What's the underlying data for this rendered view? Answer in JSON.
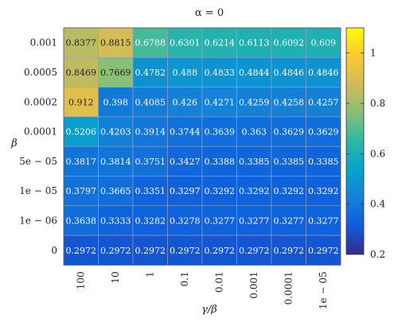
{
  "chart_data": {
    "type": "heatmap",
    "title": "α = 0",
    "xlabel": "γ/β",
    "ylabel": "β",
    "x_categories": [
      "100",
      "10",
      "1",
      "0.1",
      "0.01",
      "0.001",
      "0.0001",
      "1e − 05"
    ],
    "y_categories": [
      "0.001",
      "0.0005",
      "0.0002",
      "0.0001",
      "5e − 05",
      "1e − 05",
      "1e − 06",
      "0"
    ],
    "values": [
      [
        "0.8377",
        "0.8815",
        "0.6788",
        "0.6301",
        "0.6214",
        "0.6113",
        "0.6092",
        "0.609"
      ],
      [
        "0.8469",
        "0.7669",
        "0.4782",
        "0.488",
        "0.4833",
        "0.4844",
        "0.4846",
        "0.4846"
      ],
      [
        "0.912",
        "0.398",
        "0.4085",
        "0.426",
        "0.4271",
        "0.4259",
        "0.4258",
        "0.4257"
      ],
      [
        "0.5206",
        "0.4203",
        "0.3914",
        "0.3744",
        "0.3639",
        "0.363",
        "0.3629",
        "0.3629"
      ],
      [
        "0.3817",
        "0.3814",
        "0.3751",
        "0.3427",
        "0.3388",
        "0.3385",
        "0.3385",
        "0.3385"
      ],
      [
        "0.3797",
        "0.3665",
        "0.3351",
        "0.3297",
        "0.3292",
        "0.3292",
        "0.3292",
        "0.3292"
      ],
      [
        "0.3638",
        "0.3333",
        "0.3282",
        "0.3278",
        "0.3277",
        "0.3277",
        "0.3277",
        "0.3277"
      ],
      [
        "0.2972",
        "0.2972",
        "0.2972",
        "0.2972",
        "0.2972",
        "0.2972",
        "0.2972",
        "0.2972"
      ]
    ],
    "colorbar": {
      "range": [
        0.2,
        1.1
      ],
      "ticks": [
        "0.2",
        "0.4",
        "0.6",
        "0.8",
        "1"
      ],
      "colormap": "parula"
    },
    "grid": true
  }
}
